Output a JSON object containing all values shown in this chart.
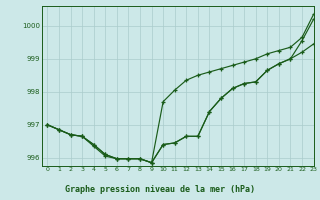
{
  "background_color": "#cce8e8",
  "grid_color": "#aacccc",
  "line_color": "#1a5c1a",
  "title": "Graphe pression niveau de la mer (hPa)",
  "xlim": [
    -0.5,
    23
  ],
  "ylim": [
    995.75,
    1000.6
  ],
  "yticks": [
    996,
    997,
    998,
    999,
    1000
  ],
  "xticks": [
    0,
    1,
    2,
    3,
    4,
    5,
    6,
    7,
    8,
    9,
    10,
    11,
    12,
    13,
    14,
    15,
    16,
    17,
    18,
    19,
    20,
    21,
    22,
    23
  ],
  "line1": [
    997.0,
    996.85,
    996.7,
    996.65,
    996.35,
    996.05,
    995.97,
    995.97,
    995.97,
    995.85,
    997.7,
    998.05,
    998.35,
    998.5,
    998.6,
    998.7,
    998.8,
    998.9,
    999.0,
    999.15,
    999.25,
    999.35,
    999.65,
    1000.35
  ],
  "line2": [
    997.0,
    996.85,
    996.7,
    996.65,
    996.4,
    996.1,
    995.97,
    995.97,
    995.97,
    995.85,
    996.4,
    996.45,
    996.65,
    996.65,
    997.4,
    997.8,
    998.1,
    998.25,
    998.3,
    998.65,
    998.85,
    999.0,
    999.2,
    999.45
  ],
  "line3": [
    997.0,
    996.85,
    996.7,
    996.65,
    996.4,
    996.1,
    995.97,
    995.97,
    995.97,
    995.85,
    996.4,
    996.45,
    996.65,
    996.65,
    997.4,
    997.8,
    998.1,
    998.25,
    998.3,
    998.65,
    998.85,
    999.0,
    999.55,
    1000.2
  ]
}
